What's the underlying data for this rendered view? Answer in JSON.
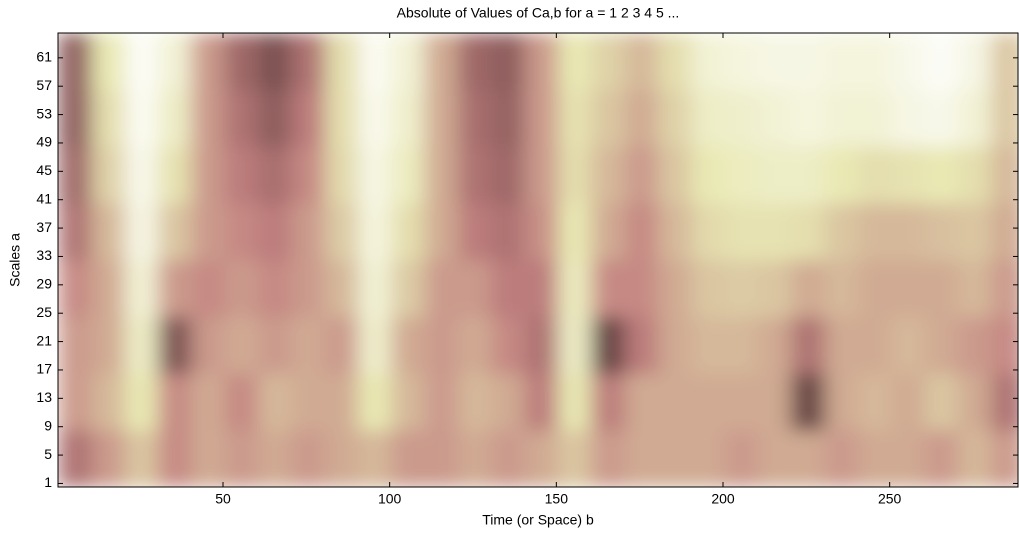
{
  "chart_data": {
    "type": "heatmap",
    "title": "Absolute of Values of Ca,b for a =  1 2 3 4 5 ...",
    "x_label": "Time (or Space) b",
    "y_label": "Scales a",
    "colormap": "pink",
    "x": [
      5.5,
      15.5,
      25.5,
      35.5,
      45.5,
      55.5,
      65.5,
      75.5,
      85.5,
      95.5,
      105.5,
      115.5,
      125.5,
      135.5,
      145.5,
      155.5,
      165.5,
      175.5,
      185.5,
      195.5,
      205.5,
      215.5,
      225.5,
      235.5,
      245.5,
      255.5,
      265.5,
      275.5,
      285.5
    ],
    "y": [
      4.5,
      12.5,
      20.5,
      28.5,
      36.5,
      44.5,
      52.5,
      60.5
    ],
    "z": [
      [
        0.3,
        0.45,
        0.6,
        0.4,
        0.5,
        0.45,
        0.5,
        0.45,
        0.5,
        0.55,
        0.45,
        0.45,
        0.5,
        0.45,
        0.5,
        0.6,
        0.45,
        0.5,
        0.5,
        0.5,
        0.45,
        0.5,
        0.5,
        0.45,
        0.5,
        0.5,
        0.45,
        0.55,
        0.45
      ],
      [
        0.45,
        0.55,
        0.75,
        0.4,
        0.5,
        0.4,
        0.55,
        0.5,
        0.5,
        0.75,
        0.55,
        0.45,
        0.55,
        0.5,
        0.35,
        0.75,
        0.35,
        0.5,
        0.5,
        0.5,
        0.5,
        0.5,
        0.1,
        0.5,
        0.55,
        0.5,
        0.6,
        0.5,
        0.3
      ],
      [
        0.45,
        0.5,
        0.8,
        0.15,
        0.45,
        0.5,
        0.45,
        0.5,
        0.45,
        0.82,
        0.5,
        0.45,
        0.5,
        0.4,
        0.3,
        0.8,
        0.1,
        0.35,
        0.5,
        0.55,
        0.55,
        0.5,
        0.3,
        0.5,
        0.5,
        0.55,
        0.5,
        0.45,
        0.4
      ],
      [
        0.4,
        0.5,
        0.85,
        0.45,
        0.4,
        0.45,
        0.4,
        0.45,
        0.55,
        0.85,
        0.62,
        0.45,
        0.45,
        0.35,
        0.35,
        0.78,
        0.4,
        0.4,
        0.5,
        0.6,
        0.62,
        0.6,
        0.5,
        0.55,
        0.5,
        0.5,
        0.5,
        0.55,
        0.45
      ],
      [
        0.3,
        0.55,
        0.9,
        0.6,
        0.45,
        0.4,
        0.35,
        0.45,
        0.62,
        0.88,
        0.7,
        0.5,
        0.35,
        0.3,
        0.42,
        0.75,
        0.5,
        0.4,
        0.55,
        0.68,
        0.72,
        0.72,
        0.7,
        0.6,
        0.55,
        0.55,
        0.58,
        0.6,
        0.5
      ],
      [
        0.25,
        0.65,
        0.92,
        0.72,
        0.45,
        0.35,
        0.28,
        0.4,
        0.68,
        0.9,
        0.78,
        0.5,
        0.3,
        0.25,
        0.45,
        0.7,
        0.55,
        0.45,
        0.6,
        0.75,
        0.78,
        0.8,
        0.8,
        0.75,
        0.7,
        0.72,
        0.75,
        0.7,
        0.55
      ],
      [
        0.2,
        0.7,
        0.95,
        0.8,
        0.45,
        0.3,
        0.2,
        0.35,
        0.7,
        0.93,
        0.82,
        0.5,
        0.28,
        0.22,
        0.45,
        0.72,
        0.6,
        0.5,
        0.65,
        0.8,
        0.82,
        0.85,
        0.88,
        0.85,
        0.85,
        0.9,
        0.92,
        0.85,
        0.6
      ],
      [
        0.2,
        0.75,
        0.97,
        0.85,
        0.45,
        0.25,
        0.15,
        0.3,
        0.7,
        0.95,
        0.85,
        0.5,
        0.25,
        0.2,
        0.45,
        0.75,
        0.65,
        0.55,
        0.7,
        0.85,
        0.88,
        0.9,
        0.9,
        0.88,
        0.88,
        0.92,
        0.97,
        0.9,
        0.6
      ]
    ],
    "xlim": [
      0.5,
      288.5
    ],
    "ylim": [
      0.5,
      64.5
    ],
    "xticks": [
      50,
      100,
      150,
      200,
      250
    ],
    "yticks": [
      1,
      5,
      9,
      13,
      17,
      21,
      25,
      29,
      33,
      37,
      41,
      45,
      49,
      53,
      57,
      61
    ]
  }
}
